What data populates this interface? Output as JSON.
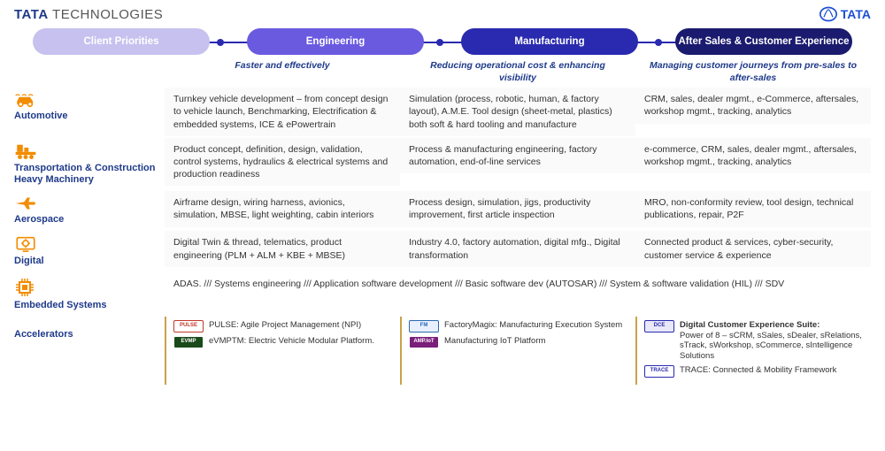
{
  "brand": {
    "left_bold": "TATA",
    "left_thin": " TECHNOLOGIES",
    "right": "TATA"
  },
  "pills": [
    {
      "label": "Client Priorities",
      "bg": "#c7c1ef",
      "tagline": ""
    },
    {
      "label": "Engineering",
      "bg": "#6a5ae0",
      "tagline": "Faster and effectively"
    },
    {
      "label": "Manufacturing",
      "bg": "#2a2ab0",
      "tagline": "Reducing operational cost & enhancing visibility"
    },
    {
      "label": "After Sales & Customer Experience",
      "bg": "#1a1a6e",
      "tagline": "Managing customer journeys from pre-sales to after-sales"
    }
  ],
  "rows": [
    {
      "label": "Automotive",
      "cells": [
        "Turnkey vehicle development – from concept design to vehicle launch, Benchmarking, Electrification & embedded systems, ICE & ePowertrain",
        "Simulation (process, robotic, human, & factory layout), A.M.E. Tool design (sheet-metal, plastics) both soft & hard tooling and manufacture",
        "CRM, sales, dealer mgmt., e-Commerce, aftersales, workshop mgmt., tracking, analytics"
      ]
    },
    {
      "label": "Transportation & Construction Heavy Machinery",
      "cells": [
        "Product concept, definition, design, validation, control systems, hydraulics & electrical systems and production readiness",
        "Process & manufacturing engineering, factory automation, end-of-line services",
        "e-commerce, CRM, sales, dealer mgmt., aftersales, workshop mgmt., tracking, analytics"
      ]
    },
    {
      "label": "Aerospace",
      "cells": [
        "Airframe design, wiring harness, avionics, simulation, MBSE, light weighting, cabin interiors",
        "Process design, simulation, jigs, productivity improvement, first article inspection",
        "MRO, non-conformity review, tool design, technical publications, repair, P2F"
      ]
    },
    {
      "label": "Digital",
      "cells": [
        "Digital Twin & thread, telematics, product engineering (PLM + ALM + KBE + MBSE)",
        "Industry 4.0, factory automation, digital mfg., Digital transformation",
        "Connected product & services, cyber-security, customer service & experience"
      ]
    }
  ],
  "embedded": {
    "label": "Embedded Systems",
    "text": "ADAS.  ///   Systems engineering  ///  Application software development  ///  Basic software dev (AUTOSAR)  ///  System & software validation (HIL)  ///  SDV"
  },
  "accel": {
    "label": "Accelerators",
    "cols": [
      [
        {
          "logo_text": "PULSE",
          "logo_bg": "#fff",
          "logo_color": "#c0392b",
          "text": "PULSE: Agile Project Management (NPI)"
        },
        {
          "logo_text": "EVMP",
          "logo_bg": "#1a4a1a",
          "logo_color": "#fff",
          "text": "eVMPTM: Electric Vehicle Modular Platform."
        }
      ],
      [
        {
          "logo_text": "FM",
          "logo_bg": "#e8f0ff",
          "logo_color": "#2a6ab0",
          "text": "FactoryMagix: Manufacturing Execution System"
        },
        {
          "logo_text": "AMP.IoT",
          "logo_bg": "#7a1f7a",
          "logo_color": "#fff",
          "text": "Manufacturing IoT Platform"
        }
      ],
      [
        {
          "logo_text": "DCE",
          "logo_bg": "#e8e8f8",
          "logo_color": "#2a2ab0",
          "bold": "Digital Customer Experience Suite:",
          "text": "Power of 8 – sCRM, sSales, sDealer, sRelations, sTrack, sWorkshop, sCommerce, sIntelligence Solutions"
        },
        {
          "logo_text": "TRACE",
          "logo_bg": "#fff",
          "logo_color": "#2a2ab0",
          "text": "TRACE: Connected & Mobility Framework"
        }
      ]
    ]
  },
  "icon_color": "#f28c00"
}
